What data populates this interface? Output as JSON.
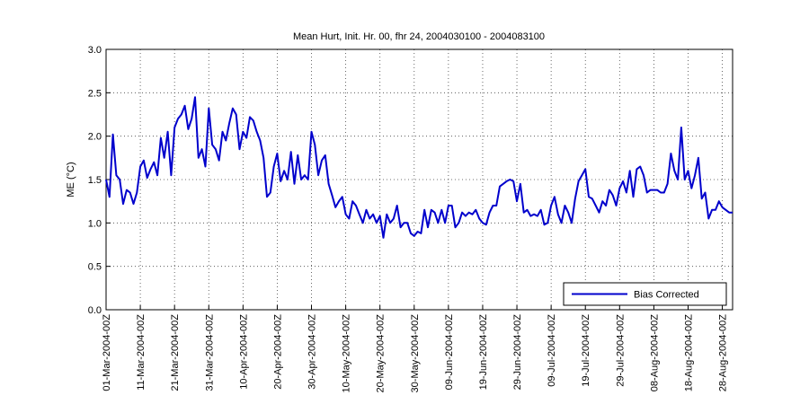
{
  "chart_data": {
    "type": "line",
    "title": "Mean Hurt, Init. Hr. 00, fhr 24, 2004030100 - 2004083100",
    "ylabel": "ME (°C)",
    "legend": "lower right",
    "grid": true,
    "ylim": [
      0,
      3
    ],
    "yticks": [
      {
        "value": 0,
        "label": "0.0"
      },
      0.5,
      {
        "value": 1,
        "label": "1.0"
      },
      1.5,
      {
        "value": 2,
        "label": "2.0"
      },
      2.5,
      {
        "value": 3,
        "label": "3.0"
      }
    ],
    "xlim": [
      "2004-03-01",
      "2004-08-31"
    ],
    "xticks": [
      {
        "value": "2004-03-01",
        "label": "01-Mar-2004-00Z"
      },
      {
        "value": "2004-03-11",
        "label": "11-Mar-2004-00Z"
      },
      {
        "value": "2004-03-21",
        "label": "21-Mar-2004-00Z"
      },
      {
        "value": "2004-03-31",
        "label": "31-Mar-2004-00Z"
      },
      {
        "value": "2004-04-10",
        "label": "10-Apr-2004-00Z"
      },
      {
        "value": "2004-04-20",
        "label": "20-Apr-2004-00Z"
      },
      {
        "value": "2004-04-30",
        "label": "30-Apr-2004-00Z"
      },
      {
        "value": "2004-05-10",
        "label": "10-May-2004-00Z"
      },
      {
        "value": "2004-05-20",
        "label": "20-May-2004-00Z"
      },
      {
        "value": "2004-05-30",
        "label": "30-May-2004-00Z"
      },
      {
        "value": "2004-06-09",
        "label": "09-Jun-2004-00Z"
      },
      {
        "value": "2004-06-19",
        "label": "19-Jun-2004-00Z"
      },
      {
        "value": "2004-06-29",
        "label": "29-Jun-2004-00Z"
      },
      {
        "value": "2004-07-09",
        "label": "09-Jul-2004-00Z"
      },
      {
        "value": "2004-07-19",
        "label": "19-Jul-2004-00Z"
      },
      {
        "value": "2004-07-29",
        "label": "29-Jul-2004-00Z"
      },
      {
        "value": "2004-08-08",
        "label": "08-Aug-2004-00Z"
      },
      {
        "value": "2004-08-18",
        "label": "18-Aug-2004-00Z"
      },
      {
        "value": "2004-08-28",
        "label": "28-Aug-2004-00Z"
      }
    ],
    "x": [
      "2004-03-01",
      "2004-03-02",
      "2004-03-03",
      "2004-03-04",
      "2004-03-05",
      "2004-03-06",
      "2004-03-07",
      "2004-03-08",
      "2004-03-09",
      "2004-03-10",
      "2004-03-11",
      "2004-03-12",
      "2004-03-13",
      "2004-03-14",
      "2004-03-15",
      "2004-03-16",
      "2004-03-17",
      "2004-03-18",
      "2004-03-19",
      "2004-03-20",
      "2004-03-21",
      "2004-03-22",
      "2004-03-23",
      "2004-03-24",
      "2004-03-25",
      "2004-03-26",
      "2004-03-27",
      "2004-03-28",
      "2004-03-29",
      "2004-03-30",
      "2004-03-31",
      "2004-04-01",
      "2004-04-02",
      "2004-04-03",
      "2004-04-04",
      "2004-04-05",
      "2004-04-06",
      "2004-04-07",
      "2004-04-08",
      "2004-04-09",
      "2004-04-10",
      "2004-04-11",
      "2004-04-12",
      "2004-04-13",
      "2004-04-14",
      "2004-04-15",
      "2004-04-16",
      "2004-04-17",
      "2004-04-18",
      "2004-04-19",
      "2004-04-20",
      "2004-04-21",
      "2004-04-22",
      "2004-04-23",
      "2004-04-24",
      "2004-04-25",
      "2004-04-26",
      "2004-04-27",
      "2004-04-28",
      "2004-04-29",
      "2004-04-30",
      "2004-05-01",
      "2004-05-02",
      "2004-05-03",
      "2004-05-04",
      "2004-05-05",
      "2004-05-06",
      "2004-05-07",
      "2004-05-08",
      "2004-05-09",
      "2004-05-10",
      "2004-05-11",
      "2004-05-12",
      "2004-05-13",
      "2004-05-14",
      "2004-05-15",
      "2004-05-16",
      "2004-05-17",
      "2004-05-18",
      "2004-05-19",
      "2004-05-20",
      "2004-05-21",
      "2004-05-22",
      "2004-05-23",
      "2004-05-24",
      "2004-05-25",
      "2004-05-26",
      "2004-05-27",
      "2004-05-28",
      "2004-05-29",
      "2004-05-30",
      "2004-05-31",
      "2004-06-01",
      "2004-06-02",
      "2004-06-03",
      "2004-06-04",
      "2004-06-05",
      "2004-06-06",
      "2004-06-07",
      "2004-06-08",
      "2004-06-09",
      "2004-06-10",
      "2004-06-11",
      "2004-06-12",
      "2004-06-13",
      "2004-06-14",
      "2004-06-15",
      "2004-06-16",
      "2004-06-17",
      "2004-06-18",
      "2004-06-19",
      "2004-06-20",
      "2004-06-21",
      "2004-06-22",
      "2004-06-23",
      "2004-06-24",
      "2004-06-25",
      "2004-06-26",
      "2004-06-27",
      "2004-06-28",
      "2004-06-29",
      "2004-06-30",
      "2004-07-01",
      "2004-07-02",
      "2004-07-03",
      "2004-07-04",
      "2004-07-05",
      "2004-07-06",
      "2004-07-07",
      "2004-07-08",
      "2004-07-09",
      "2004-07-10",
      "2004-07-11",
      "2004-07-12",
      "2004-07-13",
      "2004-07-14",
      "2004-07-15",
      "2004-07-16",
      "2004-07-17",
      "2004-07-18",
      "2004-07-19",
      "2004-07-20",
      "2004-07-21",
      "2004-07-22",
      "2004-07-23",
      "2004-07-24",
      "2004-07-25",
      "2004-07-26",
      "2004-07-27",
      "2004-07-28",
      "2004-07-29",
      "2004-07-30",
      "2004-07-31",
      "2004-08-01",
      "2004-08-02",
      "2004-08-03",
      "2004-08-04",
      "2004-08-05",
      "2004-08-06",
      "2004-08-07",
      "2004-08-08",
      "2004-08-09",
      "2004-08-10",
      "2004-08-11",
      "2004-08-12",
      "2004-08-13",
      "2004-08-14",
      "2004-08-15",
      "2004-08-16",
      "2004-08-17",
      "2004-08-18",
      "2004-08-19",
      "2004-08-20",
      "2004-08-21",
      "2004-08-22",
      "2004-08-23",
      "2004-08-24",
      "2004-08-25",
      "2004-08-26",
      "2004-08-27",
      "2004-08-28",
      "2004-08-29",
      "2004-08-30",
      "2004-08-31"
    ],
    "series": [
      {
        "name": "Bias Corrected",
        "color": "#0000cc",
        "values": [
          1.5,
          1.3,
          2.02,
          1.55,
          1.5,
          1.22,
          1.38,
          1.35,
          1.22,
          1.35,
          1.65,
          1.72,
          1.52,
          1.62,
          1.7,
          1.55,
          1.98,
          1.75,
          2.05,
          1.55,
          2.1,
          2.2,
          2.25,
          2.35,
          2.08,
          2.2,
          2.45,
          1.75,
          1.85,
          1.65,
          2.32,
          1.9,
          1.85,
          1.72,
          2.05,
          1.95,
          2.15,
          2.32,
          2.25,
          1.85,
          2.05,
          1.98,
          2.22,
          2.18,
          2.05,
          1.95,
          1.75,
          1.3,
          1.35,
          1.65,
          1.8,
          1.48,
          1.6,
          1.5,
          1.82,
          1.45,
          1.78,
          1.5,
          1.55,
          1.5,
          2.05,
          1.9,
          1.55,
          1.72,
          1.78,
          1.45,
          1.32,
          1.18,
          1.25,
          1.3,
          1.1,
          1.05,
          1.25,
          1.2,
          1.1,
          1.0,
          1.15,
          1.05,
          1.1,
          1.0,
          1.08,
          0.83,
          1.1,
          1.0,
          1.05,
          1.2,
          0.95,
          1.0,
          1.0,
          0.88,
          0.85,
          0.9,
          0.88,
          1.15,
          0.95,
          1.15,
          1.12,
          1.0,
          1.15,
          1.0,
          1.2,
          1.2,
          0.95,
          1.0,
          1.12,
          1.08,
          1.12,
          1.1,
          1.15,
          1.05,
          1.0,
          0.98,
          1.12,
          1.2,
          1.2,
          1.42,
          1.45,
          1.48,
          1.5,
          1.48,
          1.25,
          1.45,
          1.12,
          1.15,
          1.08,
          1.1,
          1.08,
          1.15,
          0.98,
          1.0,
          1.2,
          1.3,
          1.1,
          1.0,
          1.2,
          1.12,
          1.0,
          1.28,
          1.48,
          1.55,
          1.62,
          1.3,
          1.28,
          1.2,
          1.12,
          1.25,
          1.2,
          1.38,
          1.32,
          1.2,
          1.4,
          1.48,
          1.35,
          1.6,
          1.3,
          1.62,
          1.65,
          1.55,
          1.35,
          1.38,
          1.38,
          1.38,
          1.35,
          1.35,
          1.45,
          1.8,
          1.6,
          1.5,
          2.1,
          1.5,
          1.6,
          1.4,
          1.55,
          1.75,
          1.28,
          1.35,
          1.05,
          1.15,
          1.15,
          1.25,
          1.18,
          1.15,
          1.12,
          1.12
        ]
      }
    ]
  }
}
